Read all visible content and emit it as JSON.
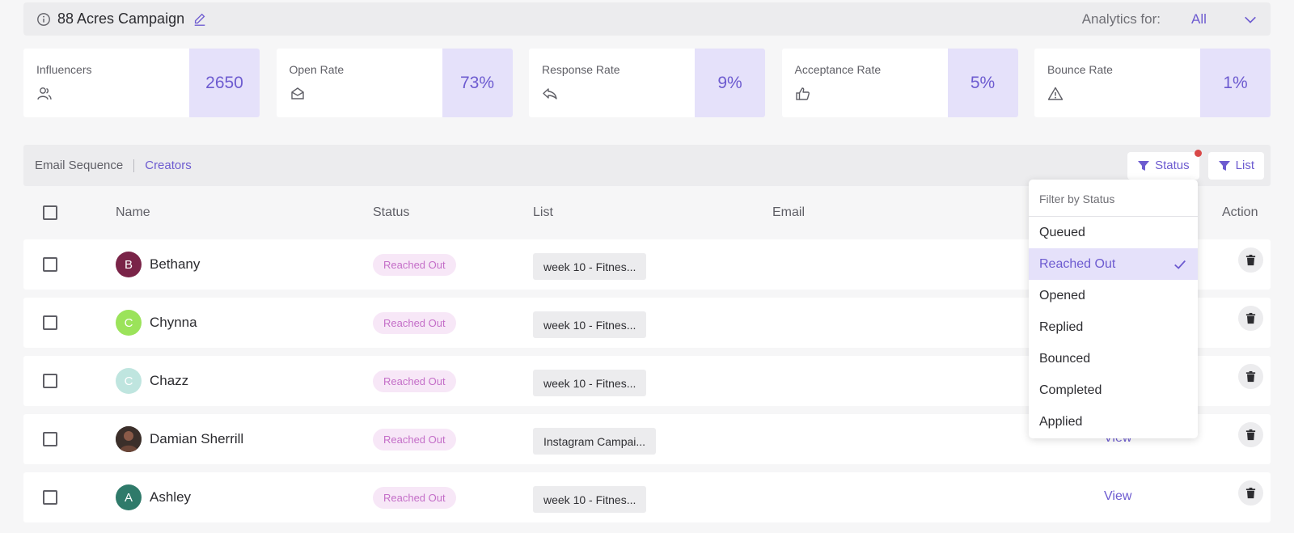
{
  "header": {
    "title": "88 Acres Campaign",
    "analytics_label": "Analytics for:",
    "analytics_value": "All"
  },
  "stats": [
    {
      "label": "Influencers",
      "value": "2650",
      "icon": "users-icon"
    },
    {
      "label": "Open Rate",
      "value": "73%",
      "icon": "envelope-open-icon"
    },
    {
      "label": "Response Rate",
      "value": "9%",
      "icon": "reply-icon"
    },
    {
      "label": "Acceptance Rate",
      "value": "5%",
      "icon": "thumbs-up-icon"
    },
    {
      "label": "Bounce Rate",
      "value": "1%",
      "icon": "warning-icon"
    }
  ],
  "tabs": {
    "email_sequence": "Email Sequence",
    "creators": "Creators"
  },
  "filters": {
    "status": "Status",
    "list": "List"
  },
  "table": {
    "headers": {
      "name": "Name",
      "status": "Status",
      "list": "List",
      "email": "Email",
      "action": "Action"
    },
    "rows": [
      {
        "initial": "B",
        "name": "Bethany",
        "status": "Reached Out",
        "list": "week 10 - Fitnes...",
        "avatar_color": "#7a2448",
        "view": ""
      },
      {
        "initial": "C",
        "name": "Chynna",
        "status": "Reached Out",
        "list": "week 10 - Fitnes...",
        "avatar_color": "#9be35a",
        "view": ""
      },
      {
        "initial": "C",
        "name": "Chazz",
        "status": "Reached Out",
        "list": "week 10 - Fitnes...",
        "avatar_color": "#bfe5df",
        "view": ""
      },
      {
        "initial": "",
        "name": "Damian Sherrill",
        "status": "Reached Out",
        "list": "Instagram Campai...",
        "avatar_color": "#4a3a33",
        "view": "View"
      },
      {
        "initial": "A",
        "name": "Ashley",
        "status": "Reached Out",
        "list": "week 10 - Fitnes...",
        "avatar_color": "#2f7a6a",
        "view": "View"
      }
    ]
  },
  "status_dropdown": {
    "title": "Filter by Status",
    "options": [
      "Queued",
      "Reached Out",
      "Opened",
      "Replied",
      "Bounced",
      "Completed",
      "Applied"
    ],
    "selected": "Reached Out"
  },
  "colors": {
    "accent": "#6d5bd0",
    "accent_light": "#e5e1fa",
    "badge_text": "#c46ec8",
    "badge_bg": "#f7e7f7"
  }
}
